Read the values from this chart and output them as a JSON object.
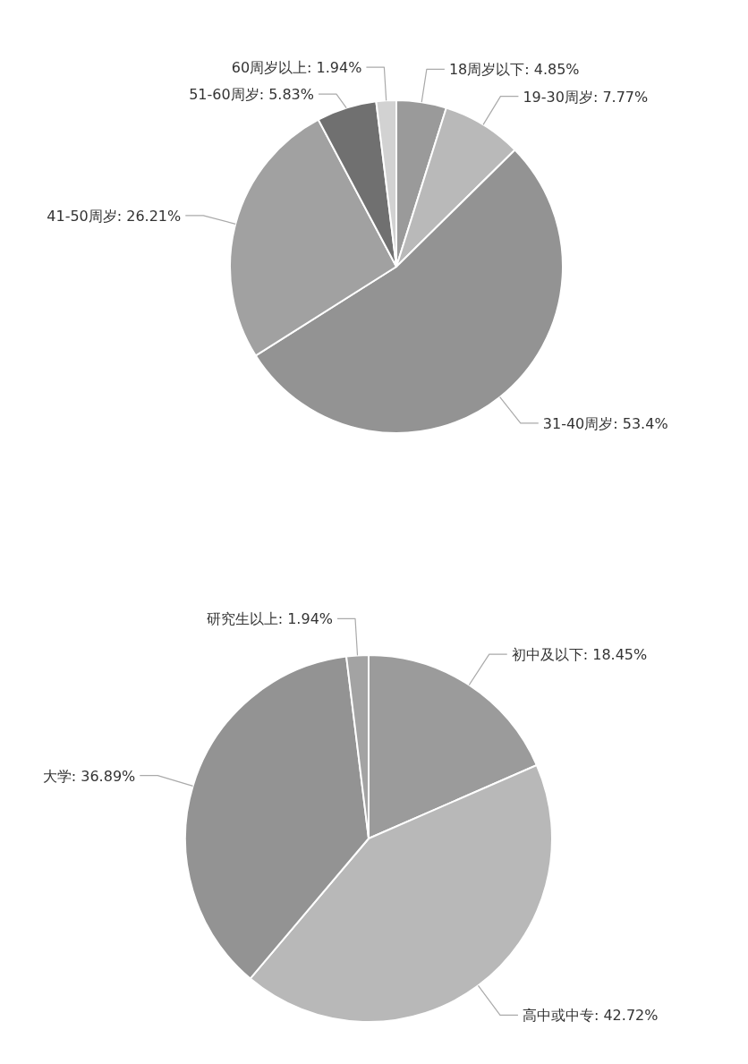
{
  "chart_data": [
    {
      "type": "pie",
      "categories": [
        "18周岁以下: 4.85%",
        "19-30周岁: 7.77%",
        "31-40周岁: 53.4%",
        "41-50周岁: 26.21%",
        "51-60周岁: 5.83%",
        "60周岁以上: 1.94%"
      ],
      "values": [
        4.85,
        7.77,
        53.4,
        26.21,
        5.83,
        1.94
      ],
      "colors": [
        "#9a9a9a",
        "#b9b9b9",
        "#939393",
        "#a1a1a1",
        "#707070",
        "#d2d2d2"
      ]
    },
    {
      "type": "pie",
      "categories": [
        "初中及以下: 18.45%",
        "高中或中专: 42.72%",
        "大学: 36.89%",
        "研究生以上: 1.94%"
      ],
      "values": [
        18.45,
        42.72,
        36.89,
        1.94
      ],
      "colors": [
        "#9b9b9b",
        "#b8b8b8",
        "#939393",
        "#a3a3a3"
      ]
    }
  ]
}
